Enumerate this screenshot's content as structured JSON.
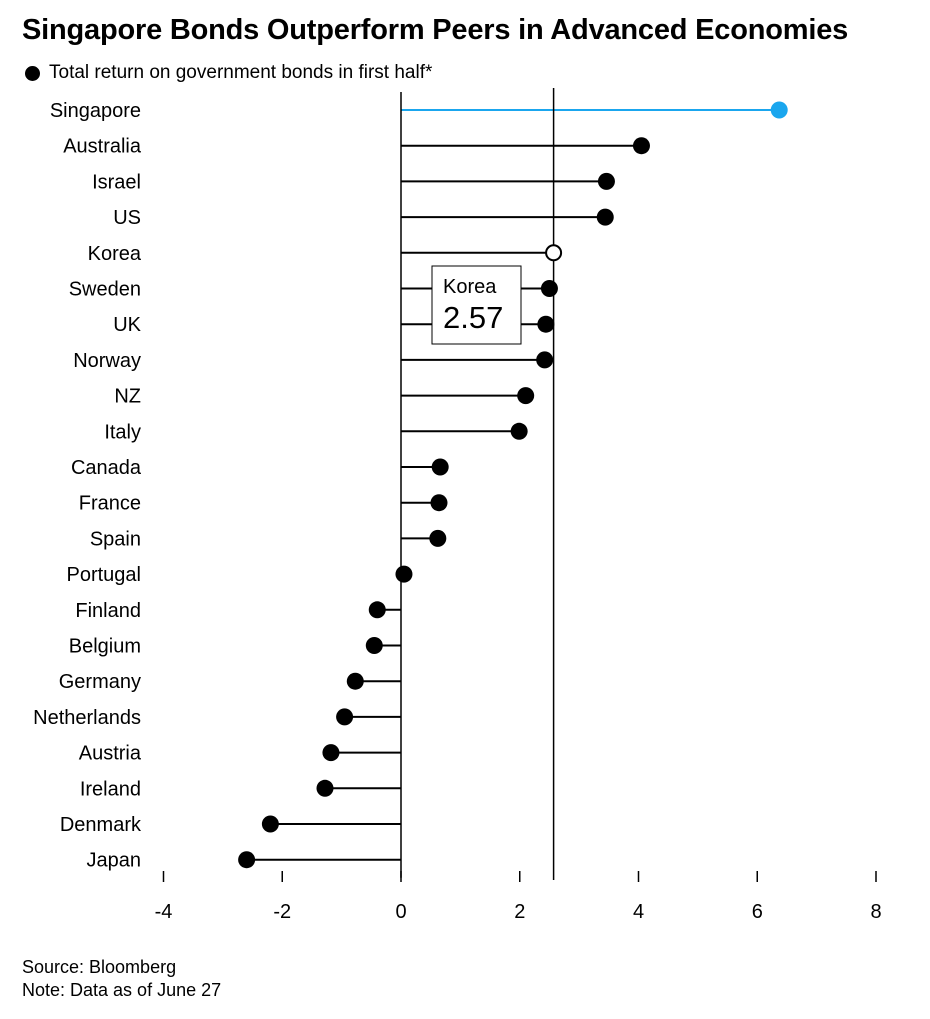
{
  "title": "Singapore Bonds Outperform Peers in Advanced Economies",
  "legend_label": "Total return on government bonds in first half*",
  "source": "Source: Bloomberg",
  "note": "Note: Data as of June 27",
  "colors": {
    "highlight": "#1aa6ee",
    "default": "#000000"
  },
  "chart_data": {
    "type": "lollipop",
    "title": "Singapore Bonds Outperform Peers in Advanced Economies",
    "legend": "Total return on government bonds in first half*",
    "x_ticks": [
      -4,
      -2,
      0,
      2,
      4,
      6,
      8
    ],
    "xlim": [
      -4,
      8
    ],
    "reference_line": {
      "label": "Korea",
      "value": 2.57
    },
    "categories": [
      "Singapore",
      "Australia",
      "Israel",
      "US",
      "Korea",
      "Sweden",
      "UK",
      "Norway",
      "NZ",
      "Italy",
      "Canada",
      "France",
      "Spain",
      "Portugal",
      "Finland",
      "Belgium",
      "Germany",
      "Netherlands",
      "Austria",
      "Ireland",
      "Denmark",
      "Japan"
    ],
    "values": [
      6.37,
      4.05,
      3.46,
      3.44,
      2.57,
      2.5,
      2.44,
      2.42,
      2.1,
      1.99,
      0.66,
      0.64,
      0.62,
      0.05,
      -0.4,
      -0.45,
      -0.77,
      -0.95,
      -1.18,
      -1.28,
      -2.2,
      -2.6
    ],
    "highlight": "Singapore",
    "reference_marker": "Korea"
  }
}
